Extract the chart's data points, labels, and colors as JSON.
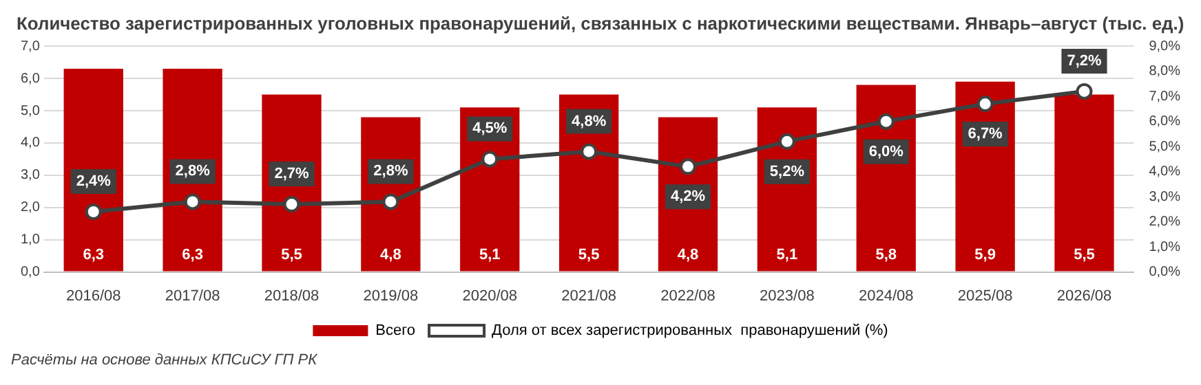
{
  "chart_data": {
    "type": "bar",
    "title": "Количество зарегистрированных уголовных правонарушений, связанных с наркотическими веществами. Январь–август (тыс. ед.)",
    "categories": [
      "2016/08",
      "2017/08",
      "2018/08",
      "2019/08",
      "2020/08",
      "2021/08",
      "2022/08",
      "2023/08",
      "2024/08",
      "2025/08",
      "2026/08"
    ],
    "series": [
      {
        "name": "Всего",
        "color": "#c00000",
        "values": [
          6.3,
          6.3,
          5.5,
          4.8,
          5.1,
          5.5,
          4.8,
          5.1,
          5.8,
          5.9,
          5.5
        ],
        "value_labels": [
          "6,3",
          "6,3",
          "5,5",
          "4,8",
          "5,1",
          "5,5",
          "4,8",
          "5,1",
          "5,8",
          "5,9",
          "5,5"
        ]
      },
      {
        "name": "Доля от всех зарегистрированных  правонарушений (%)",
        "type": "line",
        "axis": "y2",
        "color": "#404040",
        "values": [
          2.4,
          2.8,
          2.7,
          2.8,
          4.5,
          4.8,
          4.2,
          5.2,
          6.0,
          6.7,
          7.2
        ],
        "value_labels": [
          "2,4%",
          "2,8%",
          "2,7%",
          "2,8%",
          "4,5%",
          "4,8%",
          "4,2%",
          "5,2%",
          "6,0%",
          "6,7%",
          "7,2%"
        ]
      }
    ],
    "ylim": [
      0,
      7
    ],
    "yticks": [
      {
        "value": 0,
        "label": "0,0"
      },
      {
        "value": 1,
        "label": "1,0"
      },
      {
        "value": 2,
        "label": "2,0"
      },
      {
        "value": 3,
        "label": "3,0"
      },
      {
        "value": 4,
        "label": "4,0"
      },
      {
        "value": 5,
        "label": "5,0"
      },
      {
        "value": 6,
        "label": "6,0"
      },
      {
        "value": 7,
        "label": "7,0"
      }
    ],
    "y2lim": [
      0,
      9
    ],
    "y2ticks": [
      {
        "value": 0,
        "label": "0,0%"
      },
      {
        "value": 1,
        "label": "1,0%"
      },
      {
        "value": 2,
        "label": "2,0%"
      },
      {
        "value": 3,
        "label": "3,0%"
      },
      {
        "value": 4,
        "label": "4,0%"
      },
      {
        "value": 5,
        "label": "5,0%"
      },
      {
        "value": 6,
        "label": "6,0%"
      },
      {
        "value": 7,
        "label": "7,0%"
      },
      {
        "value": 8,
        "label": "8,0%"
      },
      {
        "value": 9,
        "label": "9,0%"
      }
    ],
    "grid": "y",
    "legend": "bottom",
    "marker": "circle",
    "line_style": "solid",
    "annotations": [
      "Расчёты на основе данных КПСиСУ ГП РК"
    ]
  }
}
